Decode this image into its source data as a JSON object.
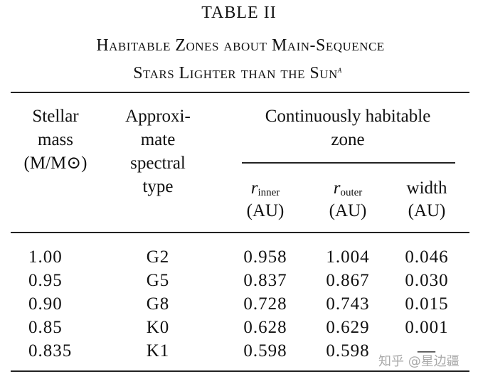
{
  "table_label": "TABLE II",
  "title": {
    "lines": [
      "Habitable Zones about Main-Sequence",
      "Stars Lighter than the Sun"
    ],
    "footnote_mark": "a"
  },
  "table": {
    "columns": [
      {
        "lines": [
          "Stellar",
          "mass",
          "(M/M⊙)"
        ]
      },
      {
        "lines": [
          "Approxi-",
          "mate",
          "spectral",
          "type"
        ]
      }
    ],
    "group_header": {
      "lines": [
        "Continuously habitable",
        "zone"
      ]
    },
    "sub_columns": [
      {
        "symbol": "r",
        "subscript": "inner",
        "unit": "(AU)"
      },
      {
        "symbol": "r",
        "subscript": "outer",
        "unit": "(AU)"
      },
      {
        "symbol": "width",
        "unit": "(AU)"
      }
    ],
    "rows": [
      [
        "1.00",
        "G2",
        "0.958",
        "1.004",
        "0.046"
      ],
      [
        "0.95",
        "G5",
        "0.837",
        "0.867",
        "0.030"
      ],
      [
        "0.90",
        "G8",
        "0.728",
        "0.743",
        "0.015"
      ],
      [
        "0.85",
        "K0",
        "0.628",
        "0.629",
        "0.001"
      ],
      [
        "0.835",
        "K1",
        "0.598",
        "0.598",
        "—"
      ]
    ]
  },
  "watermark": "知乎 @星边疆"
}
